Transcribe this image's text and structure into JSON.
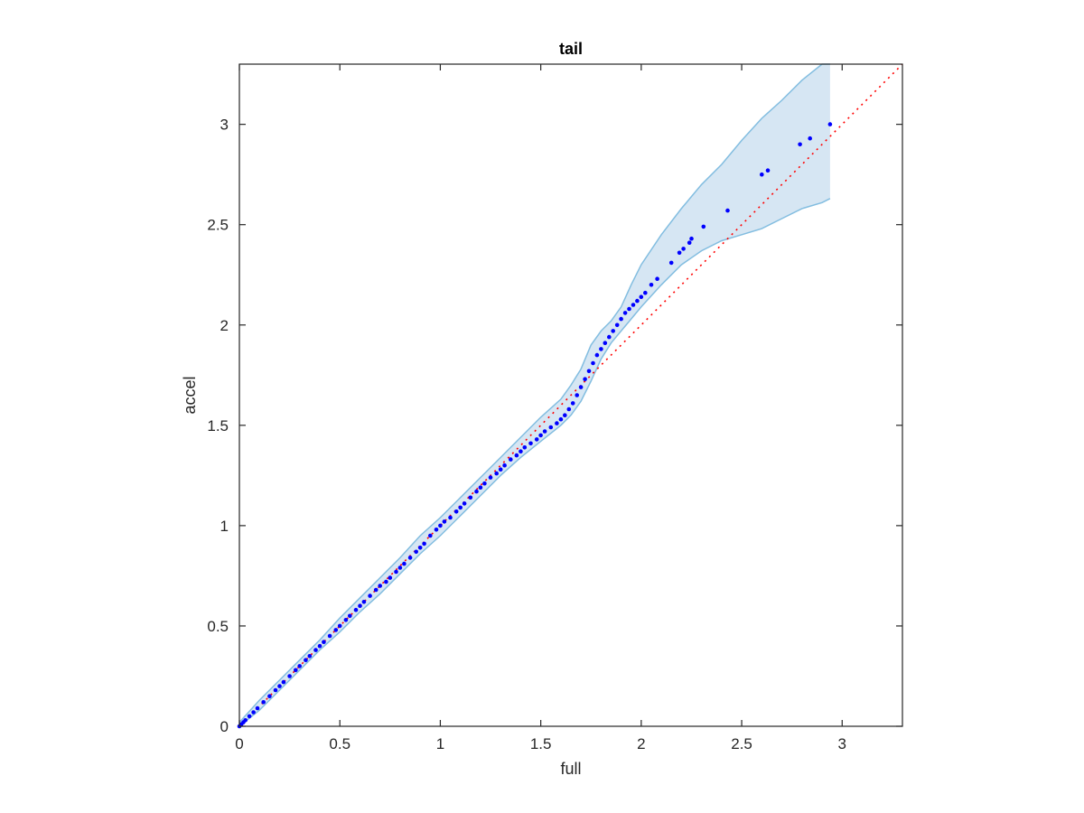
{
  "chart_data": {
    "type": "scatter",
    "title": "tail",
    "xlabel": "full",
    "ylabel": "accel",
    "xlim": [
      0,
      3.3
    ],
    "ylim": [
      0,
      3.3
    ],
    "xticks": [
      0,
      0.5,
      1,
      1.5,
      2,
      2.5,
      3
    ],
    "yticks": [
      0,
      0.5,
      1,
      1.5,
      2,
      2.5,
      3
    ],
    "xtick_labels": [
      "0",
      "0.5",
      "1",
      "1.5",
      "2",
      "2.5",
      "3"
    ],
    "ytick_labels": [
      "0",
      "0.5",
      "1",
      "1.5",
      "2",
      "2.5",
      "3"
    ],
    "grid": false,
    "box": true,
    "colors": {
      "points": "#0000ff",
      "reference_line": "#ff0000",
      "band_fill": "#d6e6f3",
      "band_edge": "#82bde0",
      "axes": "#262626"
    },
    "series": [
      {
        "kind": "points",
        "x": [
          0.0,
          0.01,
          0.02,
          0.03,
          0.05,
          0.07,
          0.09,
          0.12,
          0.15,
          0.18,
          0.2,
          0.22,
          0.25,
          0.28,
          0.3,
          0.33,
          0.35,
          0.38,
          0.4,
          0.42,
          0.45,
          0.48,
          0.5,
          0.53,
          0.55,
          0.58,
          0.6,
          0.62,
          0.65,
          0.68,
          0.7,
          0.73,
          0.75,
          0.78,
          0.8,
          0.82,
          0.85,
          0.88,
          0.9,
          0.92,
          0.95,
          0.98,
          1.0,
          1.02,
          1.05,
          1.08,
          1.1,
          1.12,
          1.15,
          1.18,
          1.2,
          1.22,
          1.25,
          1.28,
          1.3,
          1.32,
          1.35,
          1.38,
          1.4,
          1.42,
          1.45,
          1.48,
          1.5,
          1.52,
          1.55,
          1.58,
          1.6,
          1.62,
          1.64,
          1.66,
          1.68,
          1.7,
          1.72,
          1.74,
          1.76,
          1.78,
          1.8,
          1.82,
          1.84,
          1.86,
          1.88,
          1.9,
          1.92,
          1.94,
          1.96,
          1.98,
          2.0,
          2.02,
          2.05,
          2.08,
          2.15,
          2.19,
          2.21,
          2.24,
          2.25,
          2.31,
          2.43,
          2.6,
          2.63,
          2.79,
          2.84,
          2.94
        ],
        "y": [
          0.0,
          0.01,
          0.02,
          0.03,
          0.05,
          0.07,
          0.09,
          0.12,
          0.15,
          0.18,
          0.2,
          0.22,
          0.25,
          0.28,
          0.3,
          0.33,
          0.35,
          0.38,
          0.4,
          0.42,
          0.45,
          0.48,
          0.5,
          0.53,
          0.55,
          0.58,
          0.6,
          0.62,
          0.65,
          0.68,
          0.7,
          0.72,
          0.74,
          0.77,
          0.79,
          0.81,
          0.84,
          0.87,
          0.89,
          0.91,
          0.95,
          0.98,
          1.0,
          1.02,
          1.04,
          1.07,
          1.09,
          1.11,
          1.14,
          1.17,
          1.19,
          1.21,
          1.24,
          1.26,
          1.28,
          1.3,
          1.33,
          1.35,
          1.37,
          1.39,
          1.41,
          1.43,
          1.45,
          1.47,
          1.49,
          1.51,
          1.53,
          1.55,
          1.58,
          1.61,
          1.65,
          1.69,
          1.73,
          1.77,
          1.81,
          1.85,
          1.88,
          1.91,
          1.94,
          1.97,
          2.0,
          2.03,
          2.06,
          2.08,
          2.1,
          2.12,
          2.14,
          2.16,
          2.2,
          2.23,
          2.31,
          2.36,
          2.38,
          2.41,
          2.43,
          2.49,
          2.57,
          2.75,
          2.77,
          2.9,
          2.93,
          3.0
        ]
      },
      {
        "kind": "reference_line",
        "x": [
          0,
          3.3
        ],
        "y": [
          0,
          3.3
        ]
      },
      {
        "kind": "envelope",
        "x": [
          0.0,
          0.1,
          0.2,
          0.3,
          0.4,
          0.5,
          0.6,
          0.7,
          0.8,
          0.9,
          1.0,
          1.1,
          1.2,
          1.3,
          1.4,
          1.5,
          1.6,
          1.65,
          1.7,
          1.75,
          1.8,
          1.85,
          1.9,
          1.95,
          2.0,
          2.1,
          2.2,
          2.3,
          2.4,
          2.5,
          2.6,
          2.7,
          2.8,
          2.9,
          2.94
        ],
        "upper": [
          0.02,
          0.13,
          0.23,
          0.33,
          0.43,
          0.54,
          0.64,
          0.74,
          0.84,
          0.95,
          1.04,
          1.14,
          1.24,
          1.34,
          1.44,
          1.54,
          1.63,
          1.7,
          1.78,
          1.9,
          1.97,
          2.02,
          2.09,
          2.2,
          2.3,
          2.45,
          2.58,
          2.7,
          2.8,
          2.92,
          3.03,
          3.12,
          3.22,
          3.3,
          3.3
        ],
        "lower": [
          0.0,
          0.08,
          0.18,
          0.28,
          0.38,
          0.47,
          0.57,
          0.66,
          0.76,
          0.86,
          0.95,
          1.05,
          1.15,
          1.25,
          1.34,
          1.42,
          1.5,
          1.55,
          1.62,
          1.72,
          1.83,
          1.91,
          1.97,
          2.03,
          2.09,
          2.2,
          2.3,
          2.37,
          2.42,
          2.45,
          2.48,
          2.53,
          2.58,
          2.61,
          2.63
        ]
      }
    ]
  }
}
